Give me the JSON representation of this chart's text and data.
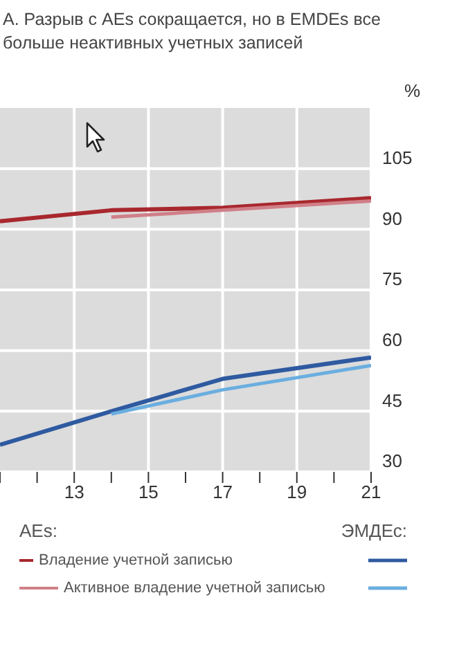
{
  "chart_data": {
    "type": "line",
    "title": "А. Разрыв с AEs сокращается, но в EMDEs все больше неактивных учетных записей",
    "ylabel": "%",
    "annotations": [
      "AEs:",
      "ЭМДЕс:"
    ],
    "series": [
      {
        "name": "Владение учетной записью",
        "color": "#a8282e",
        "x": [
          11,
          14,
          17,
          21
        ],
        "values": [
          92,
          94.7,
          95.3,
          97.7
        ]
      },
      {
        "name": "Активное владение учетной записью",
        "color": "#d07f88",
        "x": [
          14,
          17,
          21
        ],
        "values": [
          93,
          94.7,
          97
        ]
      },
      {
        "color": "#2e5aa0",
        "x": [
          11,
          14,
          17,
          21
        ],
        "values": [
          36.7,
          45,
          53,
          58.3
        ]
      },
      {
        "color": "#6aaee0",
        "x": [
          14,
          17,
          21
        ],
        "values": [
          44.3,
          50.3,
          56.3
        ]
      }
    ],
    "xlim": [
      11,
      21
    ],
    "xticks": [
      {
        "value": 11,
        "label": null
      },
      {
        "value": 12,
        "label": null
      },
      13,
      {
        "value": 14,
        "label": null
      },
      15,
      {
        "value": 16,
        "label": null
      },
      17,
      {
        "value": 18,
        "label": null
      },
      19,
      {
        "value": 20,
        "label": null
      },
      21
    ],
    "ylim": [
      30,
      120
    ],
    "yticks": [
      30,
      45,
      60,
      75,
      90,
      105
    ],
    "grid": true,
    "legend": "bottom",
    "marker": "none",
    "line_style": "solid"
  }
}
